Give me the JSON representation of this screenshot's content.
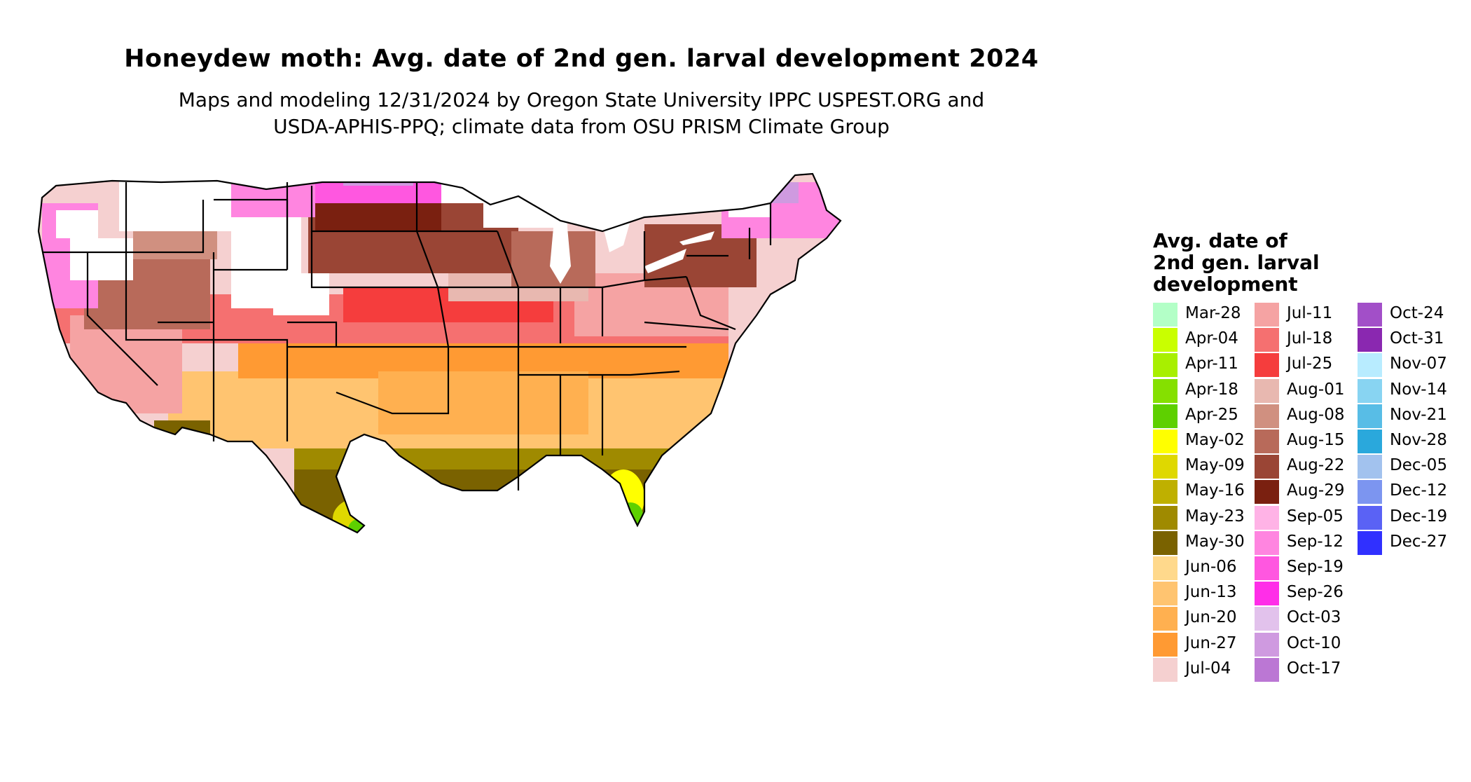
{
  "title": "Honeydew moth: Avg. date of 2nd gen. larval development 2024",
  "subtitle_line1": "Maps and modeling 12/31/2024 by Oregon State University IPPC USPEST.ORG and",
  "subtitle_line2": "USDA-APHIS-PPQ; climate data from OSU PRISM Climate Group",
  "legend": {
    "title_line1": "Avg. date of",
    "title_line2": "2nd gen. larval",
    "title_line3": "development",
    "columns": [
      [
        {
          "label": "Mar-28",
          "color": "#b3ffc7"
        },
        {
          "label": "Apr-04",
          "color": "#c9ff00"
        },
        {
          "label": "Apr-11",
          "color": "#a8ef00"
        },
        {
          "label": "Apr-18",
          "color": "#85e000"
        },
        {
          "label": "Apr-25",
          "color": "#5ed000"
        },
        {
          "label": "May-02",
          "color": "#ffff00"
        },
        {
          "label": "May-09",
          "color": "#dfd800"
        },
        {
          "label": "May-16",
          "color": "#bfb000"
        },
        {
          "label": "May-23",
          "color": "#9f8a00"
        },
        {
          "label": "May-30",
          "color": "#7a6200"
        },
        {
          "label": "Jun-06",
          "color": "#ffd98c"
        },
        {
          "label": "Jun-13",
          "color": "#ffc470"
        },
        {
          "label": "Jun-20",
          "color": "#ffb050"
        },
        {
          "label": "Jun-27",
          "color": "#ff9a33"
        },
        {
          "label": "Jul-04",
          "color": "#f5d0d0"
        }
      ],
      [
        {
          "label": "Jul-11",
          "color": "#f5a3a3"
        },
        {
          "label": "Jul-18",
          "color": "#f57070"
        },
        {
          "label": "Jul-25",
          "color": "#f53d3d"
        },
        {
          "label": "Aug-01",
          "color": "#e8b8b0"
        },
        {
          "label": "Aug-08",
          "color": "#d09080"
        },
        {
          "label": "Aug-15",
          "color": "#b86a5a"
        },
        {
          "label": "Aug-22",
          "color": "#9a4535"
        },
        {
          "label": "Aug-29",
          "color": "#7a2010"
        },
        {
          "label": "Sep-05",
          "color": "#ffb3e6"
        },
        {
          "label": "Sep-12",
          "color": "#ff85e0"
        },
        {
          "label": "Sep-19",
          "color": "#ff57e0"
        },
        {
          "label": "Sep-26",
          "color": "#ff2ee8"
        },
        {
          "label": "Oct-03",
          "color": "#e2c2ec"
        },
        {
          "label": "Oct-10",
          "color": "#cf9ae0"
        },
        {
          "label": "Oct-17",
          "color": "#bb77d4"
        }
      ],
      [
        {
          "label": "Oct-24",
          "color": "#a24fc8"
        },
        {
          "label": "Oct-31",
          "color": "#8a28b0"
        },
        {
          "label": "Nov-07",
          "color": "#b8ecff"
        },
        {
          "label": "Nov-14",
          "color": "#88d4f2"
        },
        {
          "label": "Nov-21",
          "color": "#58bde6"
        },
        {
          "label": "Nov-28",
          "color": "#2aa8dc"
        },
        {
          "label": "Dec-05",
          "color": "#a2c2ee"
        },
        {
          "label": "Dec-12",
          "color": "#7c95f0"
        },
        {
          "label": "Dec-19",
          "color": "#5a62f5"
        },
        {
          "label": "Dec-27",
          "color": "#3030ff"
        }
      ]
    ]
  }
}
